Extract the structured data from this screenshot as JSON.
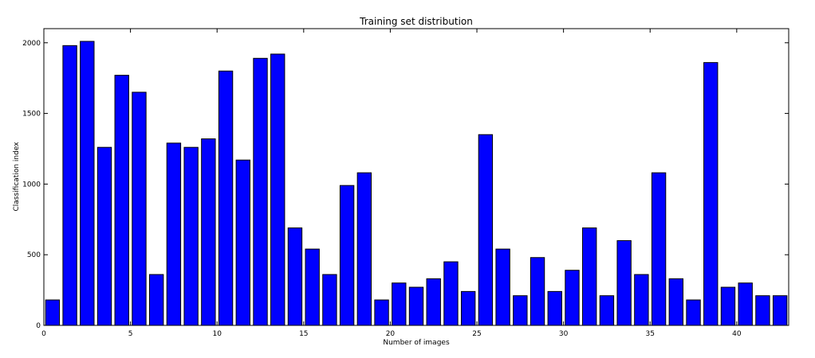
{
  "chart_data": {
    "type": "bar",
    "title": "Training set distribution",
    "xlabel": "Number of images",
    "ylabel": "Classification index",
    "xlim": [
      0,
      43
    ],
    "ylim": [
      0,
      2100
    ],
    "xticks": [
      "0",
      "5",
      "10",
      "15",
      "20",
      "25",
      "30",
      "35",
      "40"
    ],
    "yticks": [
      "0",
      "500",
      "1000",
      "1500",
      "2000"
    ],
    "bar_color": "#0000ff",
    "grid": false,
    "categories": [
      0,
      1,
      2,
      3,
      4,
      5,
      6,
      7,
      8,
      9,
      10,
      11,
      12,
      13,
      14,
      15,
      16,
      17,
      18,
      19,
      20,
      21,
      22,
      23,
      24,
      25,
      26,
      27,
      28,
      29,
      30,
      31,
      32,
      33,
      34,
      35,
      36,
      37,
      38,
      39,
      40,
      41,
      42
    ],
    "values": [
      180,
      1980,
      2010,
      1260,
      1770,
      1650,
      360,
      1290,
      1260,
      1320,
      1800,
      1170,
      1890,
      1920,
      690,
      540,
      360,
      990,
      1080,
      180,
      300,
      270,
      330,
      450,
      240,
      1350,
      540,
      210,
      480,
      240,
      390,
      690,
      210,
      600,
      360,
      1080,
      330,
      180,
      1860,
      270,
      300,
      210,
      210
    ]
  }
}
